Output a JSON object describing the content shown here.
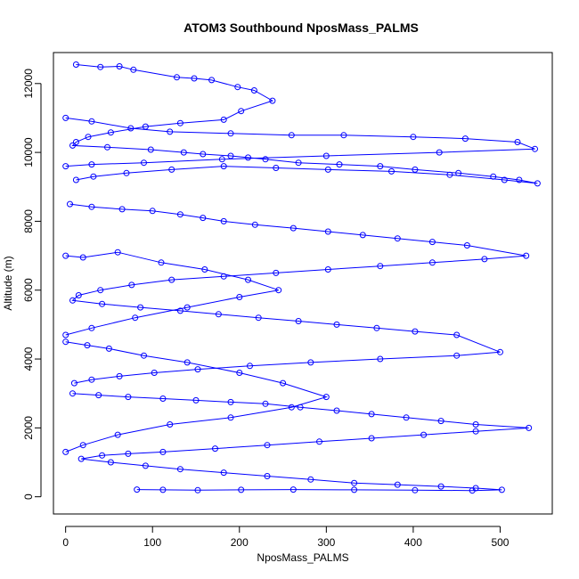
{
  "chart_data": {
    "type": "line",
    "title": "ATOM3 Southbound NposMass_PALMS",
    "xlabel": "NposMass_PALMS",
    "ylabel": "Altitude (m)",
    "xlim": [
      -14,
      560
    ],
    "ylim": [
      -500,
      12900
    ],
    "xticks": [
      0,
      100,
      200,
      300,
      400,
      500
    ],
    "yticks": [
      0,
      2000,
      4000,
      6000,
      8000,
      10000,
      12000
    ],
    "grid": false,
    "legend": "none",
    "color": "#0000ff",
    "series": [
      {
        "x": [
          12,
          40,
          62,
          78,
          128,
          148,
          168,
          198,
          217,
          238,
          202,
          182,
          132,
          92,
          52,
          26,
          12,
          8,
          48,
          98,
          136,
          158,
          190,
          210,
          230,
          268,
          315,
          362,
          402,
          452,
          492,
          522,
          543,
          505,
          442,
          375,
          302,
          242,
          182,
          122,
          70,
          32,
          12
        ],
        "y": [
          12550,
          12480,
          12500,
          12400,
          12180,
          12150,
          12100,
          11900,
          11800,
          11500,
          11200,
          10950,
          10850,
          10750,
          10580,
          10450,
          10300,
          10200,
          10150,
          10080,
          10000,
          9950,
          9900,
          9850,
          9800,
          9700,
          9650,
          9600,
          9500,
          9400,
          9300,
          9200,
          9100,
          9200,
          9350,
          9450,
          9500,
          9550,
          9600,
          9500,
          9400,
          9300,
          9200
        ]
      },
      {
        "x": [
          5,
          30,
          65,
          100,
          132,
          158,
          182,
          218,
          262,
          302,
          342,
          382,
          422,
          462,
          530,
          482,
          422,
          362,
          302,
          242,
          182,
          122,
          76,
          40,
          15,
          8,
          42,
          86,
          132,
          176,
          222,
          268,
          312,
          358,
          402,
          450,
          500,
          450,
          362,
          282,
          212,
          152,
          102,
          62,
          30,
          10
        ],
        "y": [
          8500,
          8420,
          8350,
          8300,
          8200,
          8100,
          8000,
          7900,
          7800,
          7700,
          7600,
          7500,
          7400,
          7300,
          7000,
          6900,
          6800,
          6700,
          6600,
          6500,
          6400,
          6300,
          6150,
          6000,
          5850,
          5700,
          5600,
          5500,
          5400,
          5300,
          5200,
          5100,
          5000,
          4900,
          4800,
          4700,
          4200,
          4100,
          4000,
          3900,
          3800,
          3700,
          3600,
          3500,
          3400,
          3300
        ]
      },
      {
        "x": [
          8,
          38,
          72,
          112,
          150,
          190,
          230,
          270,
          312,
          352,
          392,
          432,
          472,
          533,
          472,
          412,
          352,
          292,
          232,
          172,
          112,
          72,
          42,
          18,
          52,
          92,
          132,
          182,
          232,
          282,
          332,
          382,
          432,
          472,
          502,
          468,
          402,
          332,
          262,
          202,
          152,
          112,
          82
        ],
        "y": [
          3000,
          2950,
          2900,
          2850,
          2800,
          2750,
          2700,
          2600,
          2500,
          2400,
          2300,
          2200,
          2100,
          2000,
          1900,
          1800,
          1700,
          1600,
          1500,
          1400,
          1300,
          1250,
          1200,
          1100,
          1000,
          900,
          800,
          700,
          600,
          500,
          400,
          350,
          300,
          250,
          200,
          180,
          190,
          200,
          210,
          200,
          190,
          200,
          210
        ]
      },
      {
        "x": [
          0,
          30,
          75,
          120,
          190,
          260,
          320,
          400,
          460,
          520,
          540,
          430,
          300,
          180,
          90,
          30,
          0
        ],
        "y": [
          11000,
          10900,
          10700,
          10600,
          10550,
          10500,
          10500,
          10450,
          10400,
          10300,
          10100,
          10000,
          9900,
          9800,
          9700,
          9650,
          9600
        ]
      },
      {
        "x": [
          0,
          20,
          60,
          110,
          160,
          210,
          245,
          200,
          140,
          80,
          30,
          0
        ],
        "y": [
          7000,
          6950,
          7100,
          6800,
          6600,
          6300,
          6000,
          5800,
          5500,
          5200,
          4900,
          4700
        ]
      },
      {
        "x": [
          0,
          25,
          50,
          90,
          140,
          200,
          250,
          300,
          260,
          190,
          120,
          60,
          20,
          0
        ],
        "y": [
          4500,
          4400,
          4300,
          4100,
          3900,
          3600,
          3300,
          2900,
          2600,
          2300,
          2100,
          1800,
          1500,
          1300
        ]
      }
    ]
  }
}
